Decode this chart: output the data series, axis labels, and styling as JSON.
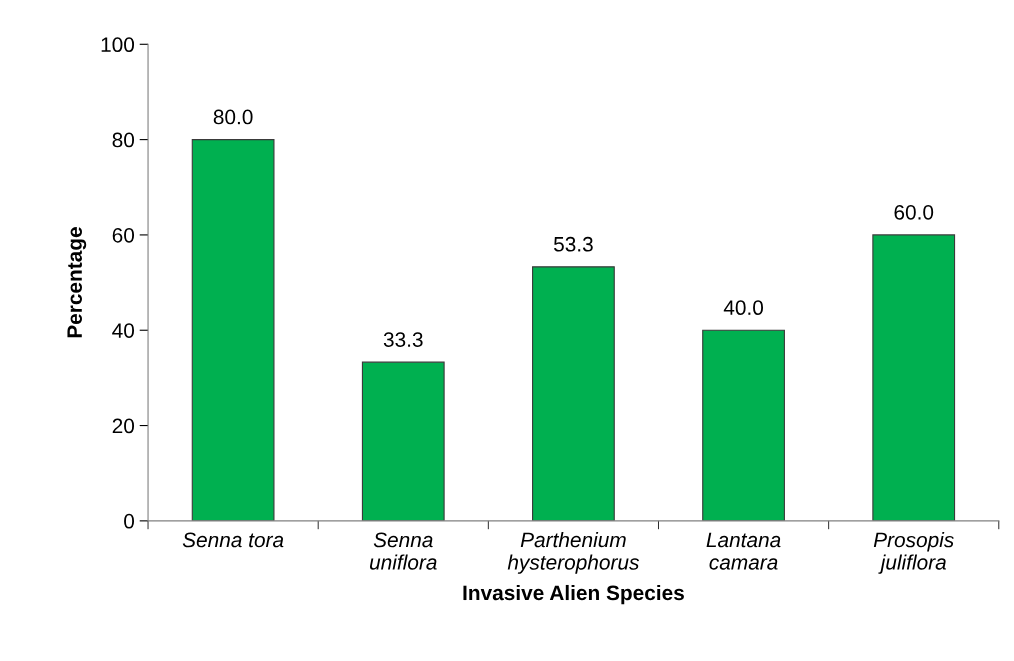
{
  "chart_data": {
    "type": "bar",
    "xlabel": "Invasive Alien Species",
    "ylabel": "Percentage",
    "categories": [
      "Senna tora",
      "Senna\nuniflora",
      "Parthenium\nhysterophorus",
      "Lantana\ncamara",
      "Prosopis\njuliflora"
    ],
    "values": [
      80.0,
      33.3,
      53.3,
      40.0,
      60.0
    ],
    "value_labels": [
      "80.0",
      "33.3",
      "53.3",
      "40.0",
      "60.0"
    ],
    "color": "#00b050",
    "ylim": [
      0,
      100
    ],
    "yticks": [
      0,
      20,
      40,
      60,
      80,
      100
    ],
    "grid": false,
    "legend": false
  }
}
